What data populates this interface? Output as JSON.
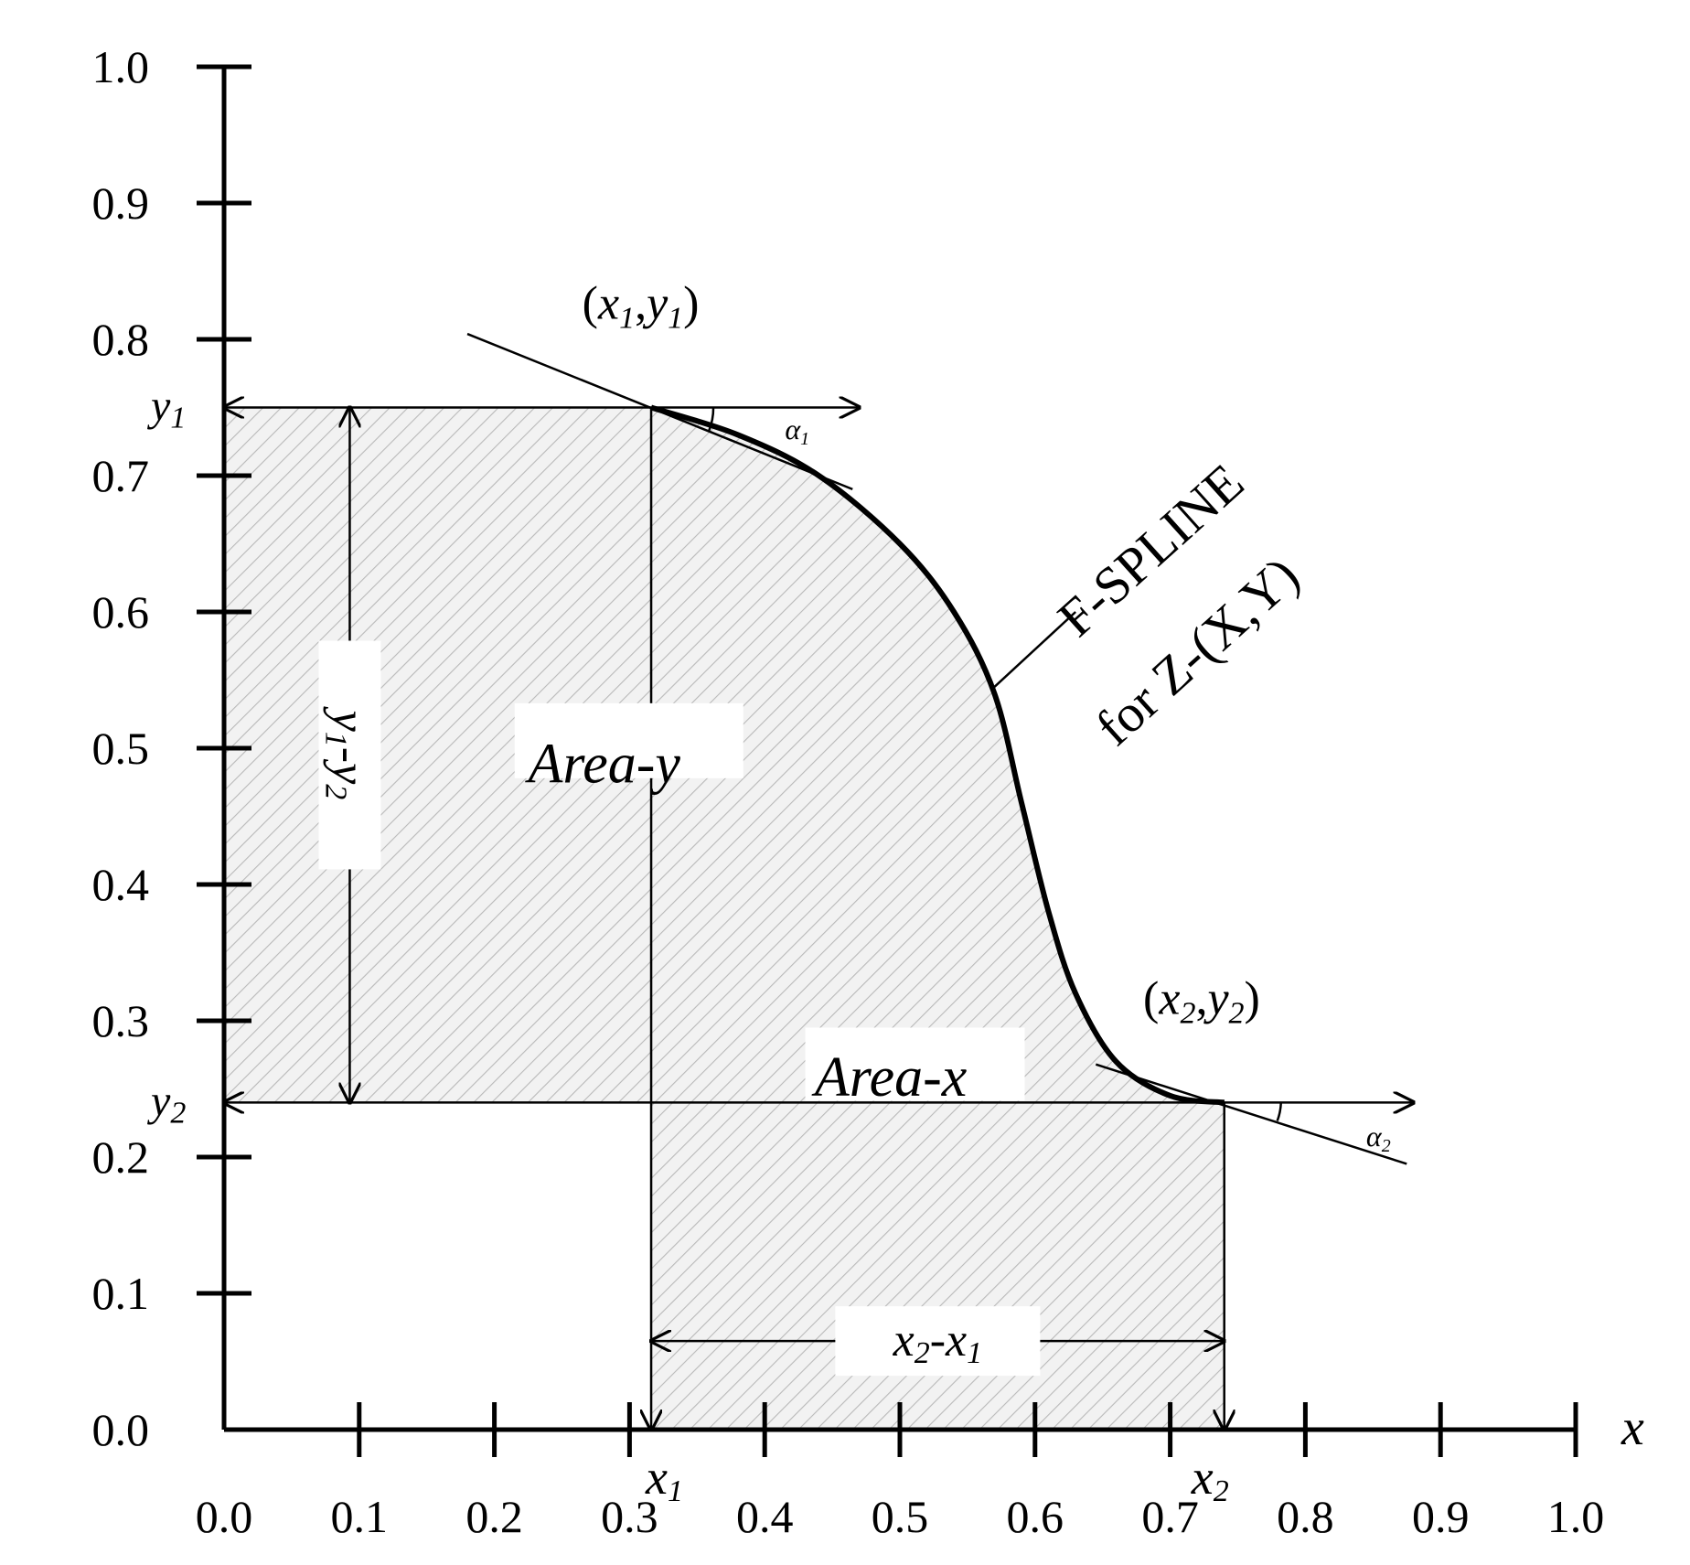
{
  "chart_data": {
    "type": "line",
    "x_ticks": [
      "0.0",
      "0.1",
      "0.2",
      "0.3",
      "0.4",
      "0.5",
      "0.6",
      "0.7",
      "0.8",
      "0.9",
      "1.0"
    ],
    "y_ticks": [
      "0.0",
      "0.1",
      "0.2",
      "0.3",
      "0.4",
      "0.5",
      "0.6",
      "0.7",
      "0.8",
      "0.9",
      "1.0"
    ],
    "xlim": [
      0,
      1
    ],
    "ylim": [
      0,
      1
    ],
    "x_axis_label": "x",
    "grid": false,
    "series": [
      {
        "x": [
          0.316,
          0.38,
          0.44,
          0.5,
          0.54,
          0.57,
          0.59,
          0.61,
          0.63,
          0.66,
          0.7,
          0.74
        ],
        "y": [
          0.75,
          0.73,
          0.7,
          0.65,
          0.6,
          0.54,
          0.46,
          0.38,
          0.32,
          0.27,
          0.245,
          0.24
        ]
      }
    ],
    "points": {
      "x1": 0.316,
      "y1": 0.75,
      "x2": 0.74,
      "y2": 0.24
    },
    "annotations": {
      "point1": {
        "open": "(",
        "x": "x",
        "xsub": "1",
        "comma": ",",
        "y": "y",
        "ysub": "1",
        "close": ")"
      },
      "point2": {
        "open": "(",
        "x": "x",
        "xsub": "2",
        "comma": ",",
        "y": "y",
        "ysub": "2",
        "close": ")"
      },
      "y1_mark": {
        "base": "y",
        "sub": "1"
      },
      "y2_mark": {
        "base": "y",
        "sub": "2"
      },
      "x1_mark": {
        "base": "x",
        "sub": "1"
      },
      "x2_mark": {
        "base": "x",
        "sub": "2"
      },
      "alpha1": {
        "base": "α",
        "sub": "1"
      },
      "alpha2": {
        "base": "α",
        "sub": "2"
      },
      "dy_label": {
        "a": "y",
        "asub": "1",
        "dash": "-",
        "b": "y",
        "bsub": "2"
      },
      "dx_label": {
        "a": "x",
        "asub": "2",
        "dash": "-",
        "b": "x",
        "bsub": "1"
      },
      "area_y": "Area-y",
      "area_x": "Area-x",
      "spline_line1": "F-SPLINE",
      "spline_line2": "for Z-(X,Y)"
    }
  }
}
